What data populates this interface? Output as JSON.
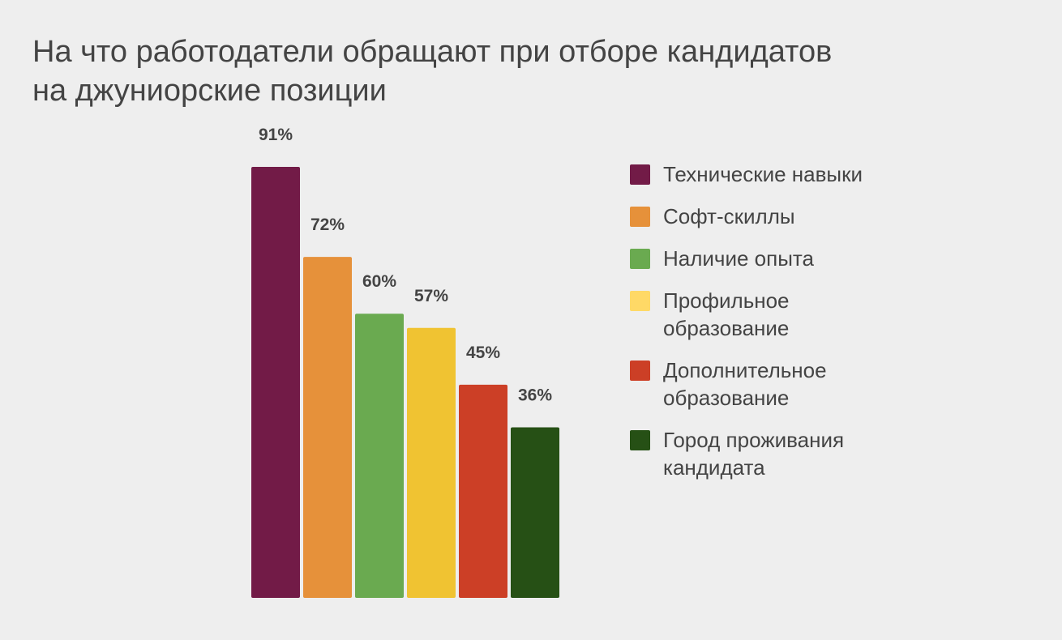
{
  "title_lines": [
    "На что работодатели обращают при отборе кандидатов",
    "на джуниорские позиции"
  ],
  "chart_data": {
    "type": "bar",
    "title": "На что работодатели обращают при отборе кандидатов на джуниорские позиции",
    "xlabel": "",
    "ylabel": "",
    "ylim": [
      0,
      100
    ],
    "grid": false,
    "legend_position": "right",
    "value_suffix": "%",
    "categories": [
      "Технические навыки",
      "Софт-скиллы",
      "Наличие опыта",
      "Профильное образование",
      "Дополнительное образование",
      "Город проживания кандидата"
    ],
    "values": [
      91,
      72,
      60,
      57,
      45,
      36
    ],
    "data_labels": [
      "91%",
      "72%",
      "60%",
      "57%",
      "45%",
      "36%"
    ],
    "colors": [
      "#721b47",
      "#e6913a",
      "#6aaa50",
      "#f0c332",
      "#cc3f26",
      "#265015"
    ]
  },
  "legend": [
    {
      "lines": [
        "Технические навыки"
      ],
      "color": "#721b47"
    },
    {
      "lines": [
        "Софт-скиллы"
      ],
      "color": "#e6913a"
    },
    {
      "lines": [
        "Наличие опыта"
      ],
      "color": "#6aaa50"
    },
    {
      "lines": [
        "Профильное",
        "образование"
      ],
      "color": "#ffd966"
    },
    {
      "lines": [
        "Дополнительное",
        "образование"
      ],
      "color": "#cc3f26"
    },
    {
      "lines": [
        "Город проживания",
        "кандидата"
      ],
      "color": "#265015"
    }
  ]
}
